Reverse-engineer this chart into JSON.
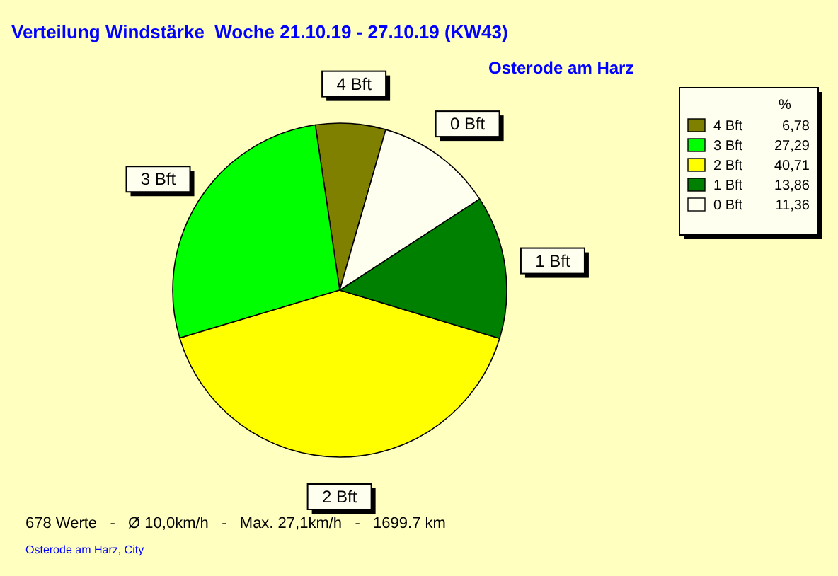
{
  "chart_data": {
    "type": "pie",
    "title": "Verteilung Windstärke  Woche 21.10.19 - 27.10.19 (KW43)",
    "subtitle": "Osterode am Harz",
    "legend_title": "%",
    "legend": "top right",
    "categories": [
      "4 Bft",
      "3 Bft",
      "2 Bft",
      "1 Bft",
      "0 Bft"
    ],
    "values": [
      6.78,
      27.29,
      40.71,
      13.86,
      11.36
    ],
    "value_labels": [
      "6,78",
      "27,29",
      "40,71",
      "13,86",
      "11,36"
    ],
    "colors": [
      "#808000",
      "#00ff00",
      "#ffff00",
      "#008000",
      "#fffff0"
    ],
    "annotations": [
      "678 Werte   -   Ø 10,0km/h   -   Max. 27,1km/h   -   1699.7 km",
      "Osterode am Harz, City"
    ]
  }
}
